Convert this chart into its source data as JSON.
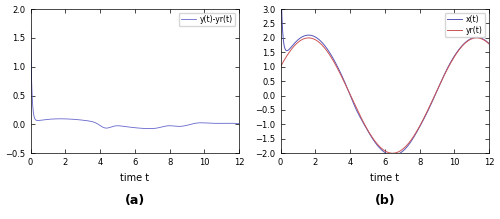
{
  "t_start": 0,
  "t_end": 12,
  "n_points": 3000,
  "subplot_a": {
    "ylim": [
      -0.5,
      2.0
    ],
    "yticks": [
      -0.5,
      0.0,
      0.5,
      1.0,
      1.5,
      2.0
    ],
    "xlim": [
      0,
      12
    ],
    "xticks": [
      0,
      2,
      4,
      6,
      8,
      10,
      12
    ],
    "xlabel": "time t",
    "legend_label": "y(t)-yr(t)",
    "line_color": "#6666cc",
    "label": "(a)"
  },
  "subplot_b": {
    "ylim": [
      -2.0,
      3.0
    ],
    "yticks": [
      -2.0,
      -1.5,
      -1.0,
      -0.5,
      0.0,
      0.5,
      1.0,
      1.5,
      2.0,
      2.5,
      3.0
    ],
    "xlim": [
      0,
      12
    ],
    "xticks": [
      0,
      2,
      4,
      6,
      8,
      10,
      12
    ],
    "xlabel": "time t",
    "legend_label_x1": "x(t)",
    "legend_label_yr": "yr(t)",
    "line_color_x1": "#5555bb",
    "line_color_yr": "#cc5555",
    "label": "(b)"
  },
  "fig_width": 5.0,
  "fig_height": 2.19,
  "dpi": 100,
  "bg_color": "#ffffff",
  "tick_fontsize": 6,
  "label_fontsize": 7,
  "legend_fontsize": 5.5
}
